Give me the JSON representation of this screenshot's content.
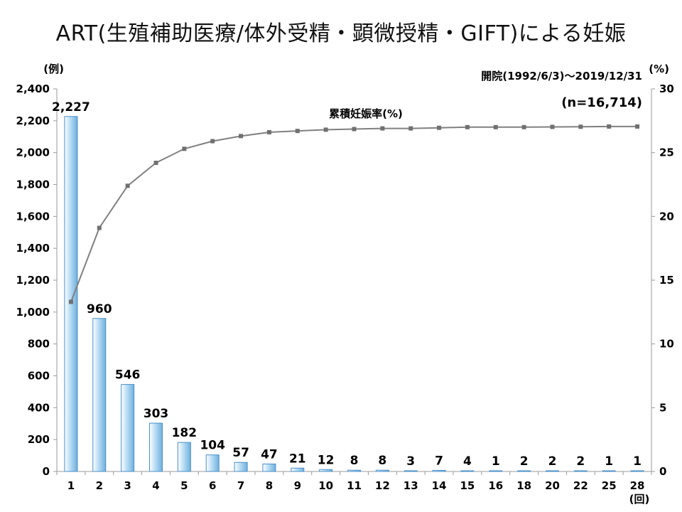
{
  "chart_data": {
    "type": "bar",
    "title": "ART(生殖補助医療/体外受精・顕微授精・GIFT)による妊娠",
    "period": "開院(1992/6/3)～2019/12/31",
    "sample": "(n=16,714)",
    "xlabel": "(回)",
    "ylabel_left": "(例)",
    "ylabel_right": "(%)",
    "categories": [
      "1",
      "2",
      "3",
      "4",
      "5",
      "6",
      "7",
      "8",
      "9",
      "10",
      "11",
      "12",
      "13",
      "14",
      "15",
      "16",
      "18",
      "20",
      "22",
      "25",
      "28"
    ],
    "series": [
      {
        "type": "bar",
        "axis": "left",
        "values": [
          2227,
          960,
          546,
          303,
          182,
          104,
          57,
          47,
          21,
          12,
          8,
          8,
          3,
          7,
          4,
          1,
          2,
          2,
          2,
          1,
          1
        ],
        "labels": [
          "2,227",
          "960",
          "546",
          "303",
          "182",
          "104",
          "57",
          "47",
          "21",
          "12",
          "8",
          "8",
          "3",
          "7",
          "4",
          "1",
          "2",
          "2",
          "2",
          "1",
          "1"
        ]
      },
      {
        "type": "line",
        "axis": "right",
        "name": "累積妊娠率(%)",
        "values": [
          13.3,
          19.1,
          22.4,
          24.2,
          25.3,
          25.9,
          26.3,
          26.6,
          26.7,
          26.8,
          26.85,
          26.9,
          26.9,
          26.95,
          27.0,
          27.0,
          27.0,
          27.02,
          27.03,
          27.05,
          27.05
        ]
      }
    ],
    "ylim_left": [
      0,
      2400
    ],
    "yticks_left": [
      "0",
      "200",
      "400",
      "600",
      "800",
      "1,000",
      "1,200",
      "1,400",
      "1,600",
      "1,800",
      "2,000",
      "2,200",
      "2,400"
    ],
    "ylim_right": [
      0,
      30
    ],
    "yticks_right": [
      "0",
      "5",
      "10",
      "15",
      "20",
      "25",
      "30"
    ],
    "grid": false,
    "colors": {
      "bar_edge": "#4a8fc8",
      "bar_light": "#ffffff",
      "bar_mid": "#bfe0f6",
      "bar_dark": "#6fb0dc",
      "line": "#808080",
      "marker": "#707070",
      "axis": "#9a9a9a"
    }
  }
}
